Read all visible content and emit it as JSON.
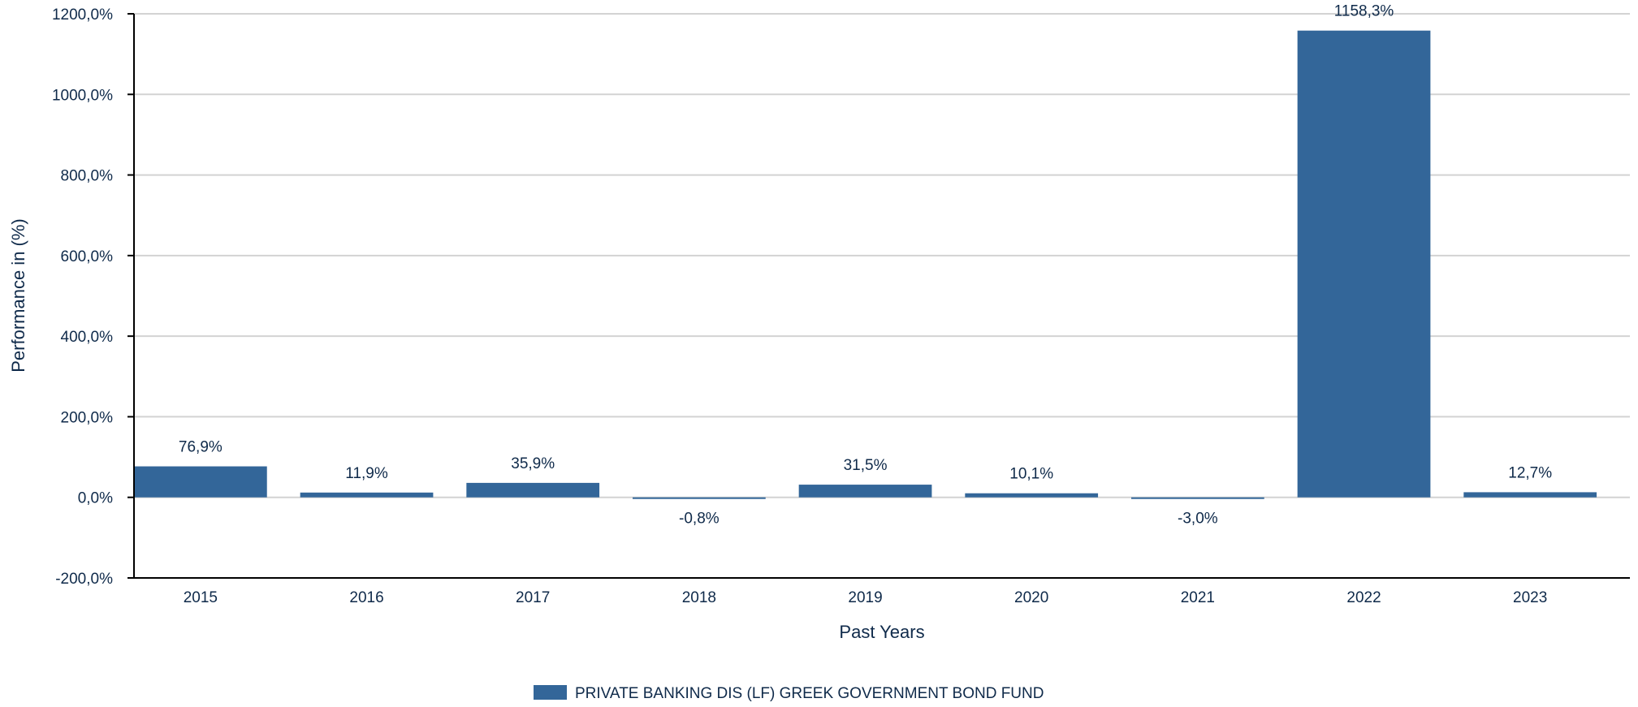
{
  "chart_data": {
    "type": "bar",
    "categories": [
      "2015",
      "2016",
      "2017",
      "2018",
      "2019",
      "2020",
      "2021",
      "2022",
      "2023"
    ],
    "series": [
      {
        "name": "PRIVATE BANKING DIS (LF) GREEK GOVERNMENT BOND FUND",
        "values": [
          76.9,
          11.9,
          35.9,
          -0.8,
          31.5,
          10.1,
          -3.0,
          1158.3,
          12.7
        ],
        "value_labels": [
          "76,9%",
          "11,9%",
          "35,9%",
          "-0,8%",
          "31,5%",
          "10,1%",
          "-3,0%",
          "1158,3%",
          "12,7%"
        ],
        "color": "#336699"
      }
    ],
    "title": "",
    "xlabel": "Past Years",
    "ylabel": "Performance in (%)",
    "ylim": [
      -200,
      1200
    ],
    "yticks": [
      -200,
      0,
      200,
      400,
      600,
      800,
      1000,
      1200
    ],
    "ytick_labels": [
      "-200,0%",
      "0,0%",
      "200,0%",
      "400,0%",
      "600,0%",
      "800,0%",
      "1000,0%",
      "1200,0%"
    ],
    "grid": true,
    "legend_position": "bottom-center"
  },
  "colors": {
    "bar": "#336699",
    "grid": "#d3d3d3",
    "axis": "#000000",
    "text": "#0f2a4a"
  }
}
